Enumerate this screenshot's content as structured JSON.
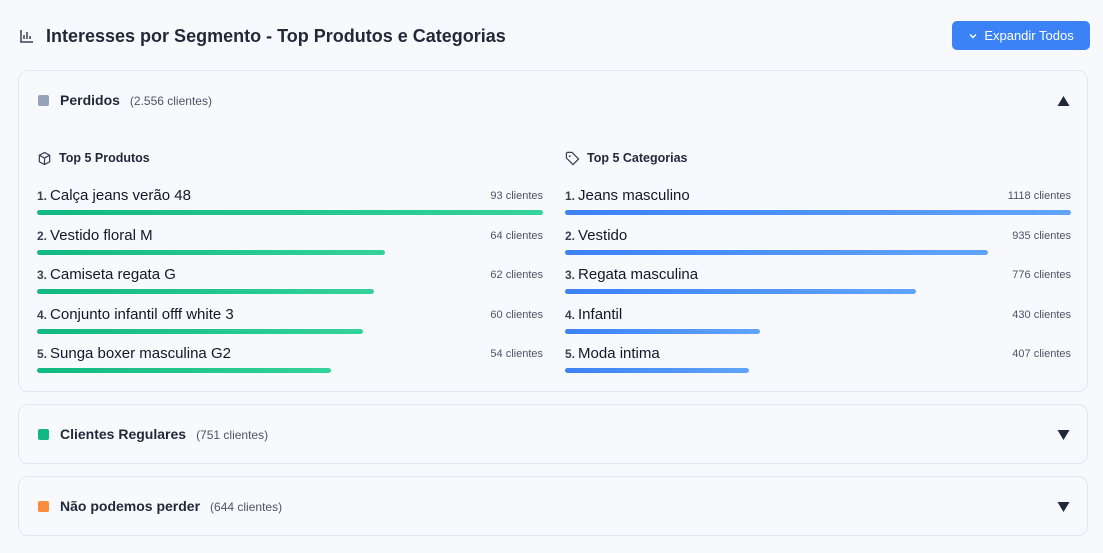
{
  "header": {
    "title": "Interesses por Segmento - Top Produtos e Categorias",
    "button": "Expandir Todos"
  },
  "segments": [
    {
      "name": "Perdidos",
      "count_label": "(2.556 clientes)",
      "color": "#94a3b8",
      "expanded": true,
      "products_title": "Top 5 Produtos",
      "categories_title": "Top 5 Categorias",
      "products": [
        {
          "rank": "1.",
          "name": "Calça jeans verão 48",
          "value": 93,
          "label": "93 clientes"
        },
        {
          "rank": "2.",
          "name": "Vestido floral M",
          "value": 64,
          "label": "64 clientes"
        },
        {
          "rank": "3.",
          "name": "Camiseta regata G",
          "value": 62,
          "label": "62 clientes"
        },
        {
          "rank": "4.",
          "name": "Conjunto infantil offf white 3",
          "value": 60,
          "label": "60 clientes"
        },
        {
          "rank": "5.",
          "name": "Sunga  boxer masculina G2",
          "value": 54,
          "label": "54 clientes"
        }
      ],
      "categories": [
        {
          "rank": "1.",
          "name": "Jeans masculino",
          "value": 1118,
          "label": "1118 clientes"
        },
        {
          "rank": "2.",
          "name": "Vestido",
          "value": 935,
          "label": "935 clientes"
        },
        {
          "rank": "3.",
          "name": "Regata masculina",
          "value": 776,
          "label": "776 clientes"
        },
        {
          "rank": "4.",
          "name": "Infantil",
          "value": 430,
          "label": "430 clientes"
        },
        {
          "rank": "5.",
          "name": "Moda intima",
          "value": 407,
          "label": "407 clientes"
        }
      ]
    },
    {
      "name": "Clientes Regulares",
      "count_label": "(751 clientes)",
      "color": "#10b981",
      "expanded": false
    },
    {
      "name": "Não podemos perder",
      "count_label": "(644 clientes)",
      "color": "#fb8c3c",
      "expanded": false
    }
  ]
}
